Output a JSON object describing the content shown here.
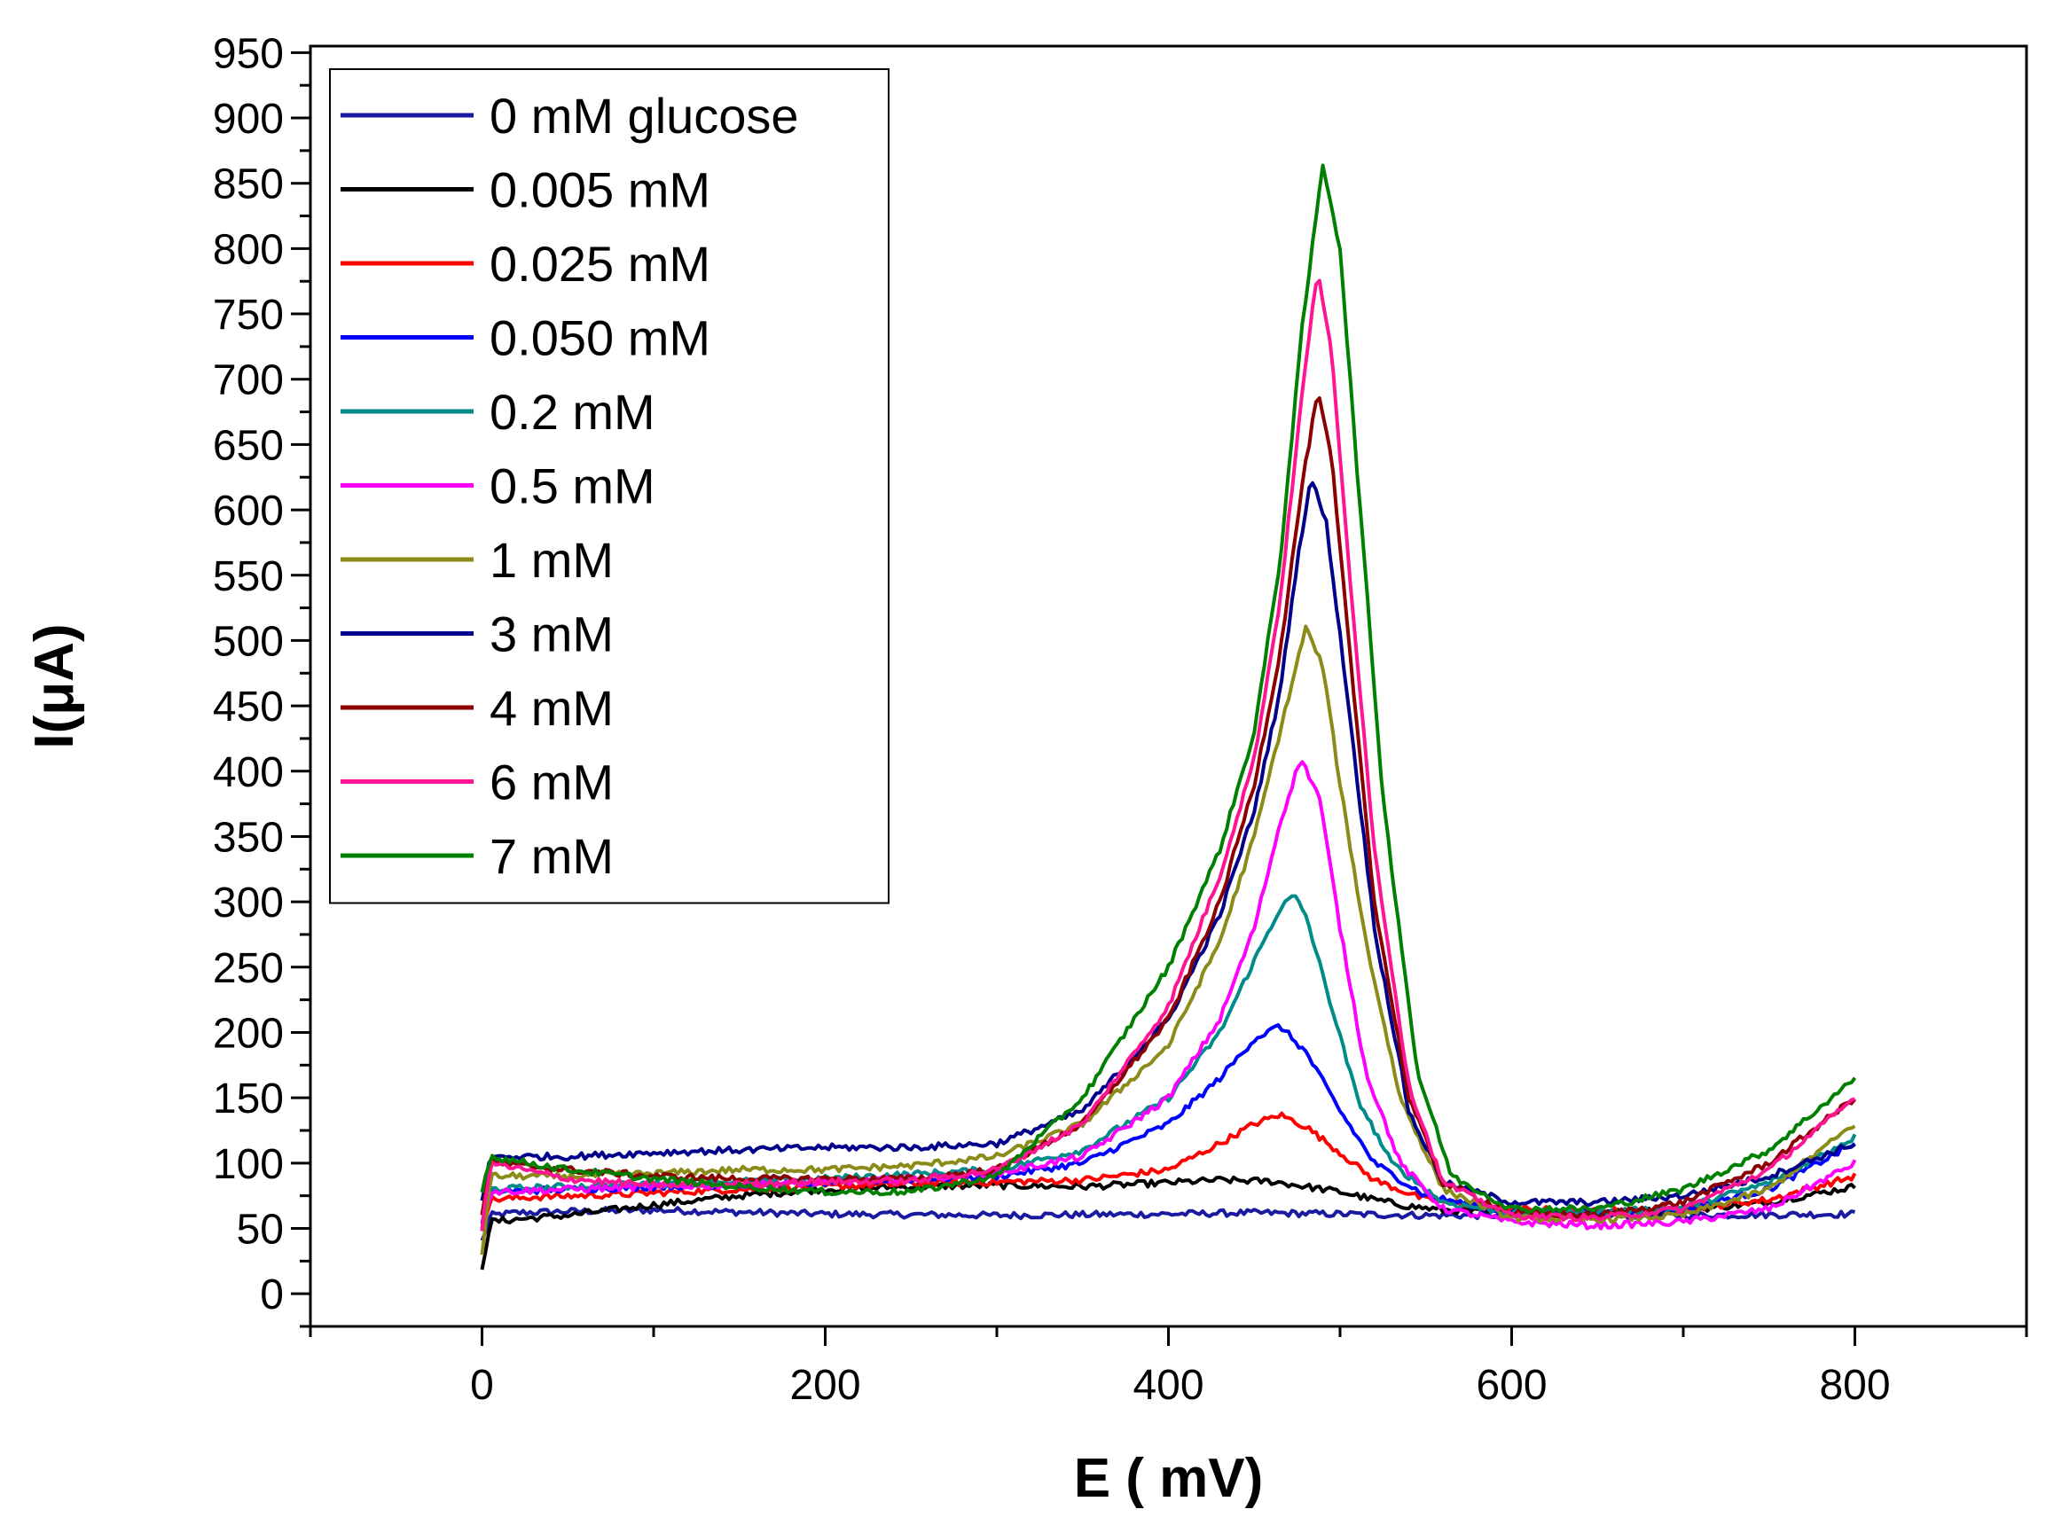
{
  "chart_data": {
    "type": "line",
    "title": "",
    "xlabel": "E ( mV)",
    "ylabel": "I(μA)",
    "xlim": [
      -100,
      900
    ],
    "ylim": [
      -25,
      955
    ],
    "xticks": [
      0,
      200,
      400,
      600,
      800
    ],
    "yticks": [
      0,
      50,
      100,
      150,
      200,
      250,
      300,
      350,
      400,
      450,
      500,
      550,
      600,
      650,
      700,
      750,
      800,
      850,
      900,
      950
    ],
    "xtick_labels": [
      "0",
      "200",
      "400",
      "600",
      "800"
    ],
    "ytick_labels": [
      "0",
      "50",
      "100",
      "150",
      "200",
      "250",
      "300",
      "350",
      "400",
      "450",
      "500",
      "550",
      "600",
      "650",
      "700",
      "750",
      "800",
      "850",
      "900",
      "950"
    ],
    "legend_position": "top-left",
    "series": [
      {
        "name": "0 mM glucose",
        "color": "#1a1aa0",
        "x": [
          0,
          5,
          20,
          50,
          100,
          200,
          300,
          400,
          450,
          500,
          550,
          600,
          700,
          800
        ],
        "y": [
          40,
          60,
          62,
          63,
          64,
          61,
          60,
          61,
          62,
          61,
          60,
          60,
          60,
          61
        ]
      },
      {
        "name": "0.005 mM",
        "color": "#000000",
        "x": [
          0,
          5,
          20,
          50,
          100,
          150,
          200,
          250,
          300,
          350,
          400,
          430,
          460,
          480,
          500,
          520,
          540,
          560,
          600,
          650,
          700,
          750,
          800
        ],
        "y": [
          20,
          55,
          57,
          60,
          68,
          75,
          80,
          82,
          83,
          82,
          85,
          87,
          86,
          82,
          78,
          72,
          67,
          64,
          62,
          62,
          64,
          70,
          82
        ]
      },
      {
        "name": "0.025 mM",
        "color": "#ff0000",
        "x": [
          0,
          5,
          30,
          80,
          150,
          250,
          350,
          400,
          430,
          450,
          465,
          480,
          500,
          520,
          550,
          600,
          650,
          700,
          750,
          800
        ],
        "y": [
          50,
          72,
          74,
          76,
          80,
          84,
          87,
          95,
          115,
          130,
          137,
          128,
          108,
          87,
          72,
          65,
          63,
          65,
          72,
          90
        ]
      },
      {
        "name": "0.050 mM",
        "color": "#0000ff",
        "x": [
          0,
          5,
          50,
          100,
          200,
          300,
          350,
          400,
          430,
          450,
          465,
          480,
          500,
          520,
          550,
          600,
          650,
          700,
          750,
          800
        ],
        "y": [
          55,
          78,
          80,
          82,
          85,
          90,
          100,
          130,
          165,
          195,
          205,
          185,
          140,
          100,
          75,
          62,
          62,
          65,
          80,
          115
        ]
      },
      {
        "name": "0.2 mM",
        "color": "#008b8b",
        "x": [
          0,
          5,
          50,
          100,
          200,
          300,
          350,
          400,
          430,
          450,
          465,
          473,
          480,
          495,
          510,
          530,
          560,
          600,
          650,
          700,
          750,
          800
        ],
        "y": [
          60,
          80,
          82,
          84,
          88,
          95,
          110,
          150,
          200,
          255,
          295,
          305,
          290,
          220,
          150,
          100,
          70,
          62,
          62,
          66,
          85,
          120
        ]
      },
      {
        "name": "0.5 mM",
        "color": "#ff00ff",
        "x": [
          0,
          5,
          50,
          100,
          200,
          300,
          350,
          400,
          430,
          450,
          465,
          477,
          488,
          500,
          515,
          535,
          560,
          600,
          650,
          700,
          750,
          800
        ],
        "y": [
          50,
          78,
          80,
          82,
          85,
          92,
          105,
          150,
          210,
          280,
          360,
          410,
          380,
          280,
          170,
          100,
          65,
          55,
          52,
          55,
          65,
          100
        ]
      },
      {
        "name": "1 mM",
        "color": "#8b8b1a",
        "x": [
          0,
          5,
          50,
          100,
          150,
          200,
          250,
          300,
          350,
          400,
          430,
          450,
          465,
          480,
          490,
          500,
          515,
          535,
          560,
          600,
          650,
          700,
          750,
          800
        ],
        "y": [
          30,
          90,
          90,
          92,
          95,
          95,
          98,
          105,
          130,
          190,
          270,
          350,
          430,
          510,
          480,
          390,
          270,
          150,
          80,
          58,
          57,
          60,
          80,
          130
        ]
      },
      {
        "name": "3 mM",
        "color": "#00008b",
        "x": [
          0,
          5,
          50,
          100,
          150,
          200,
          250,
          300,
          350,
          400,
          430,
          450,
          465,
          475,
          483,
          492,
          505,
          520,
          540,
          560,
          600,
          650,
          700,
          750,
          800
        ],
        "y": [
          70,
          105,
          105,
          108,
          110,
          112,
          112,
          115,
          140,
          210,
          290,
          370,
          460,
          560,
          625,
          590,
          450,
          280,
          140,
          85,
          70,
          70,
          75,
          90,
          115
        ]
      },
      {
        "name": "4 mM",
        "color": "#8b0000",
        "x": [
          0,
          5,
          50,
          100,
          150,
          200,
          250,
          300,
          350,
          400,
          430,
          450,
          465,
          478,
          487,
          495,
          505,
          520,
          540,
          560,
          600,
          650,
          700,
          750,
          800
        ],
        "y": [
          60,
          100,
          95,
          90,
          88,
          88,
          88,
          95,
          130,
          210,
          300,
          390,
          490,
          620,
          690,
          640,
          500,
          300,
          150,
          85,
          62,
          60,
          70,
          100,
          150
        ]
      },
      {
        "name": "6 mM",
        "color": "#ff1493",
        "x": [
          0,
          5,
          50,
          100,
          150,
          200,
          250,
          300,
          350,
          400,
          430,
          450,
          465,
          478,
          487,
          495,
          505,
          520,
          540,
          560,
          600,
          650,
          700,
          750,
          800
        ],
        "y": [
          50,
          100,
          88,
          83,
          84,
          86,
          86,
          95,
          130,
          220,
          320,
          410,
          530,
          690,
          785,
          720,
          560,
          340,
          160,
          85,
          60,
          58,
          65,
          95,
          150
        ]
      },
      {
        "name": "7 mM",
        "color": "#008000",
        "x": [
          0,
          5,
          50,
          100,
          150,
          200,
          250,
          300,
          350,
          400,
          430,
          450,
          465,
          478,
          490,
          500,
          510,
          525,
          545,
          565,
          600,
          650,
          700,
          750,
          800
        ],
        "y": [
          80,
          105,
          95,
          88,
          82,
          78,
          78,
          90,
          150,
          250,
          340,
          430,
          560,
          740,
          865,
          800,
          630,
          380,
          170,
          90,
          65,
          65,
          80,
          110,
          165
        ]
      }
    ]
  }
}
